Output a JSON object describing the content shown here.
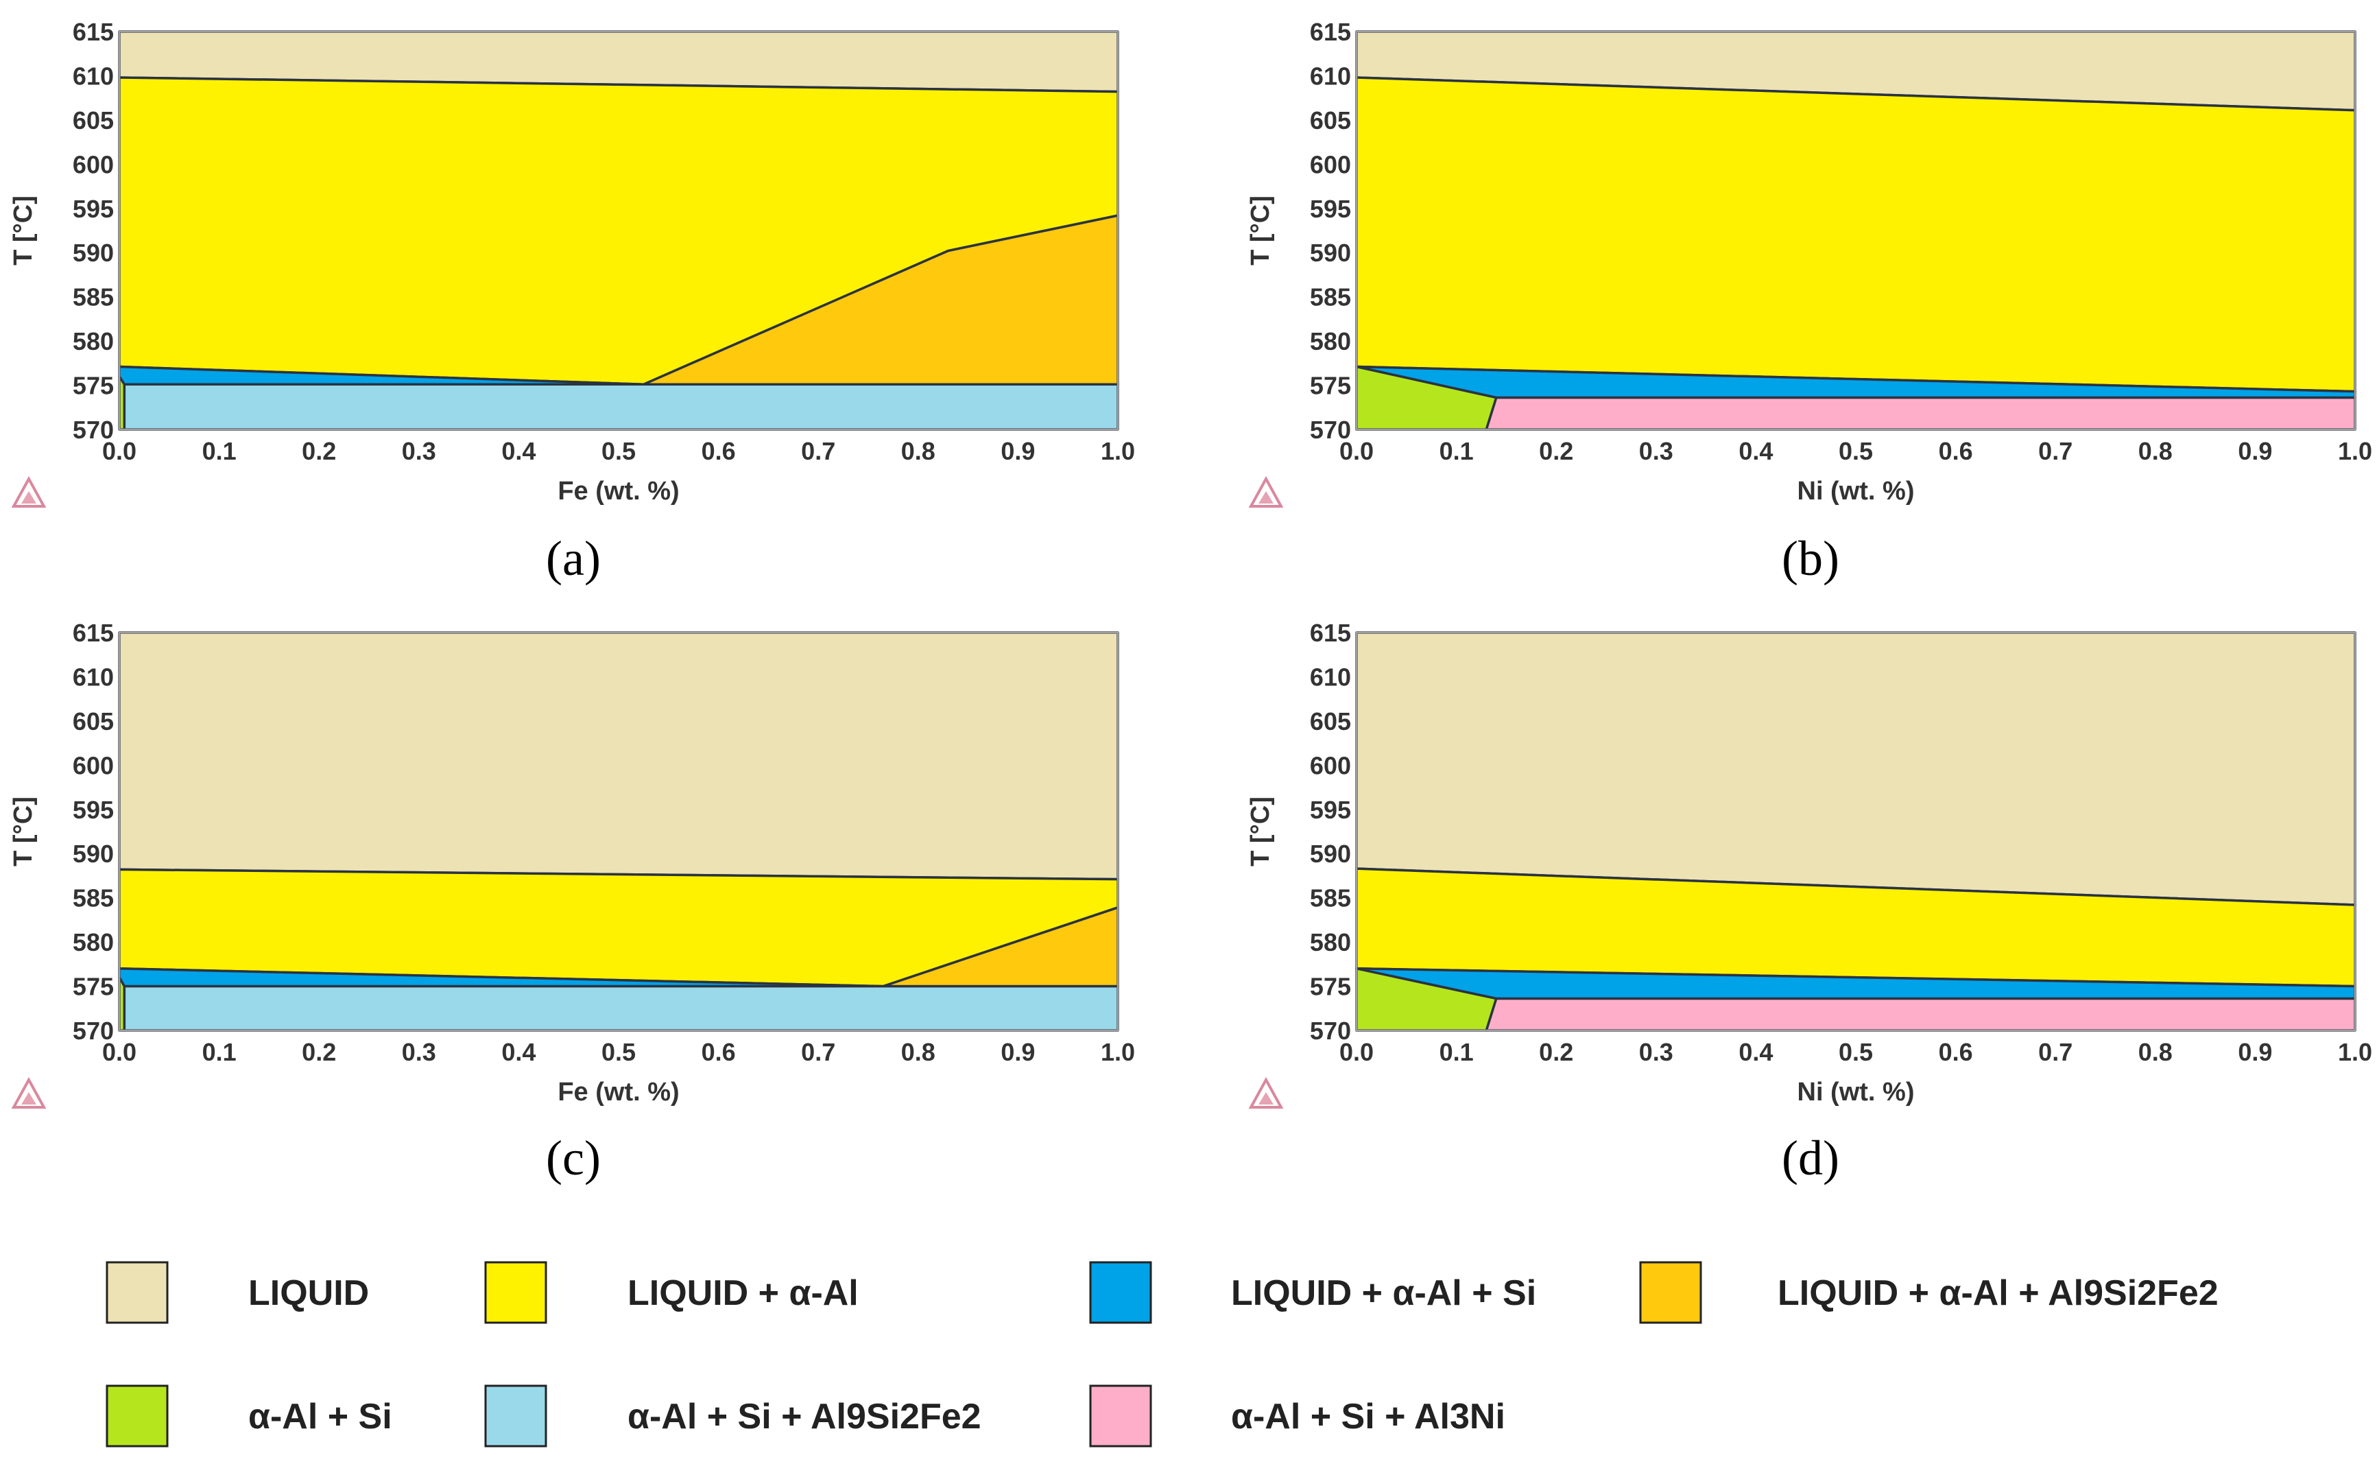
{
  "chart_data": [
    {
      "id": "a",
      "type": "area",
      "panel_label": "(a)",
      "xlabel": "Fe (wt. %)",
      "ylabel": "T [°C]",
      "xlim": [
        0,
        1
      ],
      "ylim": [
        570,
        615
      ],
      "xticks": [
        "0.0",
        "0.1",
        "0.2",
        "0.3",
        "0.4",
        "0.5",
        "0.6",
        "0.7",
        "0.8",
        "0.9",
        "1.0"
      ],
      "yticks": [
        "570",
        "575",
        "580",
        "585",
        "590",
        "595",
        "600",
        "605",
        "610",
        "615"
      ],
      "regions": [
        {
          "phase": "LIQUID",
          "points": [
            [
              0,
              615
            ],
            [
              1,
              615
            ],
            [
              1,
              608.2
            ],
            [
              0,
              609.8
            ]
          ]
        },
        {
          "phase": "LIQUID + α-Al",
          "points": [
            [
              0,
              609.8
            ],
            [
              1,
              608.2
            ],
            [
              1,
              594.2
            ],
            [
              0.83,
              590.2
            ],
            [
              0.525,
              575.1
            ],
            [
              0,
              577.1
            ]
          ]
        },
        {
          "phase": "LIQUID + α-Al + Al9Si2Fe2",
          "points": [
            [
              0.525,
              575.1
            ],
            [
              0.83,
              590.2
            ],
            [
              1,
              594.2
            ],
            [
              1,
              575.1
            ]
          ]
        },
        {
          "phase": "LIQUID + α-Al + Si",
          "points": [
            [
              0,
              577.1
            ],
            [
              0.525,
              575.1
            ],
            [
              0.005,
              575.1
            ],
            [
              0,
              576.0
            ]
          ]
        },
        {
          "phase": "α-Al + Si + Al9Si2Fe2",
          "points": [
            [
              0.005,
              575.1
            ],
            [
              1,
              575.1
            ],
            [
              1,
              570
            ],
            [
              0.005,
              570
            ]
          ]
        },
        {
          "phase": "α-Al + Si",
          "points": [
            [
              0,
              576.0
            ],
            [
              0.005,
              575.1
            ],
            [
              0.005,
              570
            ],
            [
              0,
              570
            ]
          ]
        }
      ]
    },
    {
      "id": "b",
      "type": "area",
      "panel_label": "(b)",
      "xlabel": "Ni (wt. %)",
      "ylabel": "T [°C]",
      "xlim": [
        0,
        1
      ],
      "ylim": [
        570,
        615
      ],
      "xticks": [
        "0.0",
        "0.1",
        "0.2",
        "0.3",
        "0.4",
        "0.5",
        "0.6",
        "0.7",
        "0.8",
        "0.9",
        "1.0"
      ],
      "yticks": [
        "570",
        "575",
        "580",
        "585",
        "590",
        "595",
        "600",
        "605",
        "610",
        "615"
      ],
      "regions": [
        {
          "phase": "LIQUID",
          "points": [
            [
              0,
              615
            ],
            [
              1,
              615
            ],
            [
              1,
              606.1
            ],
            [
              0,
              609.8
            ]
          ]
        },
        {
          "phase": "LIQUID + α-Al",
          "points": [
            [
              0,
              609.8
            ],
            [
              1,
              606.1
            ],
            [
              1,
              574.3
            ],
            [
              0,
              577.1
            ]
          ]
        },
        {
          "phase": "LIQUID + α-Al + Si",
          "points": [
            [
              0,
              577.1
            ],
            [
              1,
              574.3
            ],
            [
              1,
              573.6
            ],
            [
              0.14,
              573.6
            ]
          ]
        },
        {
          "phase": "α-Al + Si",
          "points": [
            [
              0,
              577.1
            ],
            [
              0.14,
              573.6
            ],
            [
              0.13,
              570
            ],
            [
              0,
              570
            ]
          ]
        },
        {
          "phase": "α-Al + Si + Al3Ni",
          "points": [
            [
              0.14,
              573.6
            ],
            [
              1,
              573.6
            ],
            [
              1,
              570
            ],
            [
              0.13,
              570
            ]
          ]
        }
      ]
    },
    {
      "id": "c",
      "type": "area",
      "panel_label": "(c)",
      "xlabel": "Fe (wt. %)",
      "ylabel": "T [°C]",
      "xlim": [
        0,
        1
      ],
      "ylim": [
        570,
        615
      ],
      "xticks": [
        "0.0",
        "0.1",
        "0.2",
        "0.3",
        "0.4",
        "0.5",
        "0.6",
        "0.7",
        "0.8",
        "0.9",
        "1.0"
      ],
      "yticks": [
        "570",
        "575",
        "580",
        "585",
        "590",
        "595",
        "600",
        "605",
        "610",
        "615"
      ],
      "regions": [
        {
          "phase": "LIQUID",
          "points": [
            [
              0,
              615
            ],
            [
              1,
              615
            ],
            [
              1,
              587.1
            ],
            [
              0,
              588.2
            ]
          ]
        },
        {
          "phase": "LIQUID + α-Al",
          "points": [
            [
              0,
              588.2
            ],
            [
              1,
              587.1
            ],
            [
              1,
              583.9
            ],
            [
              0.765,
              575.0
            ],
            [
              0,
              577.0
            ]
          ]
        },
        {
          "phase": "LIQUID + α-Al + Al9Si2Fe2",
          "points": [
            [
              0.765,
              575.0
            ],
            [
              1,
              583.9
            ],
            [
              1,
              575.0
            ]
          ]
        },
        {
          "phase": "LIQUID + α-Al + Si",
          "points": [
            [
              0,
              577.0
            ],
            [
              0.765,
              575.0
            ],
            [
              0.005,
              575.0
            ],
            [
              0,
              576.0
            ]
          ]
        },
        {
          "phase": "α-Al + Si + Al9Si2Fe2",
          "points": [
            [
              0.005,
              575.0
            ],
            [
              1,
              575.0
            ],
            [
              1,
              570
            ],
            [
              0.005,
              570
            ]
          ]
        },
        {
          "phase": "α-Al + Si",
          "points": [
            [
              0,
              576.0
            ],
            [
              0.005,
              575.0
            ],
            [
              0.005,
              570
            ],
            [
              0,
              570
            ]
          ]
        }
      ]
    },
    {
      "id": "d",
      "type": "area",
      "panel_label": "(d)",
      "xlabel": "Ni (wt. %)",
      "ylabel": "T [°C]",
      "xlim": [
        0,
        1
      ],
      "ylim": [
        570,
        615
      ],
      "xticks": [
        "0.0",
        "0.1",
        "0.2",
        "0.3",
        "0.4",
        "0.5",
        "0.6",
        "0.7",
        "0.8",
        "0.9",
        "1.0"
      ],
      "yticks": [
        "570",
        "575",
        "580",
        "585",
        "590",
        "595",
        "600",
        "605",
        "610",
        "615"
      ],
      "regions": [
        {
          "phase": "LIQUID",
          "points": [
            [
              0,
              615
            ],
            [
              1,
              615
            ],
            [
              1,
              584.2
            ],
            [
              0,
              588.3
            ]
          ]
        },
        {
          "phase": "LIQUID + α-Al",
          "points": [
            [
              0,
              588.3
            ],
            [
              1,
              584.2
            ],
            [
              1,
              575.0
            ],
            [
              0,
              577.0
            ]
          ]
        },
        {
          "phase": "LIQUID + α-Al + Si",
          "points": [
            [
              0,
              577.0
            ],
            [
              1,
              575.0
            ],
            [
              1,
              573.6
            ],
            [
              0.14,
              573.6
            ]
          ]
        },
        {
          "phase": "α-Al + Si",
          "points": [
            [
              0,
              577.0
            ],
            [
              0.14,
              573.6
            ],
            [
              0.13,
              570
            ],
            [
              0,
              570
            ]
          ]
        },
        {
          "phase": "α-Al + Si + Al3Ni",
          "points": [
            [
              0.14,
              573.6
            ],
            [
              1,
              573.6
            ],
            [
              1,
              570
            ],
            [
              0.13,
              570
            ]
          ]
        }
      ]
    }
  ],
  "legend": [
    {
      "label": "LIQUID",
      "color": "#ede2b4"
    },
    {
      "label": "LIQUID + α-Al",
      "color": "#fff200"
    },
    {
      "label": "LIQUID + α-Al + Si",
      "color": "#00a2e8"
    },
    {
      "label": "LIQUID + α-Al + Al9Si2Fe2",
      "color": "#ffc90e"
    },
    {
      "label": "α-Al + Si",
      "color": "#b5e61d"
    },
    {
      "label": "α-Al + Si + Al9Si2Fe2",
      "color": "#99d9ea"
    },
    {
      "label": "α-Al + Si + Al3Ni",
      "color": "#ffaec9"
    }
  ]
}
